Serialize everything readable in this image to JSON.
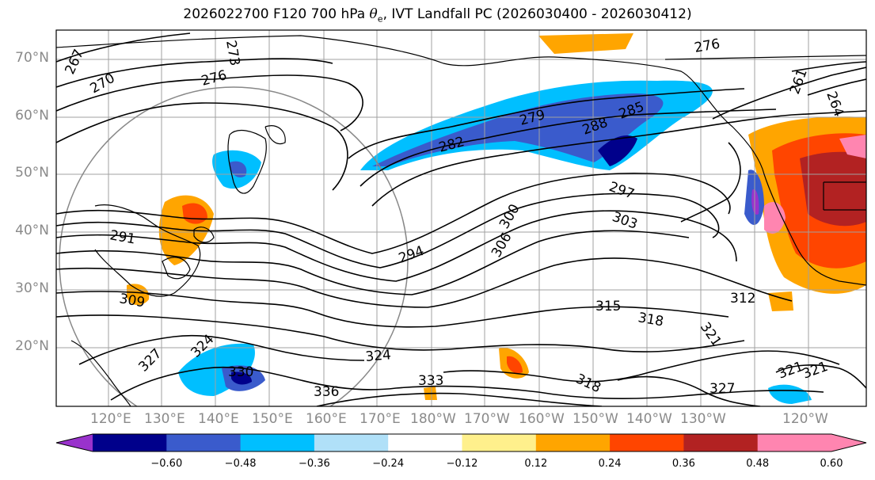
{
  "title": {
    "prefix": "2026022700 F120 700 hPa ",
    "symbol": "θ",
    "subscript": "e",
    "suffix": ", IVT Landfall PC (2026030400 - 2026030412)"
  },
  "map": {
    "lat_labels": [
      "70°N",
      "60°N",
      "50°N",
      "40°N",
      "30°N",
      "20°N"
    ],
    "lon_labels": [
      "120°E",
      "130°E",
      "140°E",
      "150°E",
      "160°E",
      "170°E",
      "180°W",
      "170°W",
      "160°W",
      "150°W",
      "140°W",
      "130°W",
      "120°W"
    ],
    "contour_labels": [
      "267",
      "270",
      "273",
      "276",
      "276",
      "279",
      "282",
      "285",
      "288",
      "291",
      "294",
      "297",
      "300",
      "303",
      "306",
      "309",
      "312",
      "315",
      "318",
      "318",
      "321",
      "321",
      "321",
      "324",
      "324",
      "327",
      "327",
      "330",
      "333",
      "336",
      "264",
      "261"
    ],
    "colors": {
      "contour": "#000000",
      "coast": "#000000",
      "grid": "#a0a0a0",
      "land_fill": "#ffffff"
    }
  },
  "colorbar": {
    "levels": [
      -0.6,
      -0.48,
      -0.36,
      -0.24,
      -0.12,
      0.12,
      0.24,
      0.36,
      0.48,
      0.6
    ],
    "tick_labels": [
      "−0.60",
      "−0.48",
      "−0.36",
      "−0.24",
      "−0.12",
      "0.12",
      "0.24",
      "0.36",
      "0.48",
      "0.60"
    ],
    "colors": [
      "#9932cc",
      "#00008b",
      "#3a5bcc",
      "#00bfff",
      "#b0e0f8",
      "#ffffff",
      "#fff08c",
      "#ffa500",
      "#ff4500",
      "#b22222",
      "#ff85b0",
      "#ff85b0"
    ],
    "extend": "both"
  }
}
